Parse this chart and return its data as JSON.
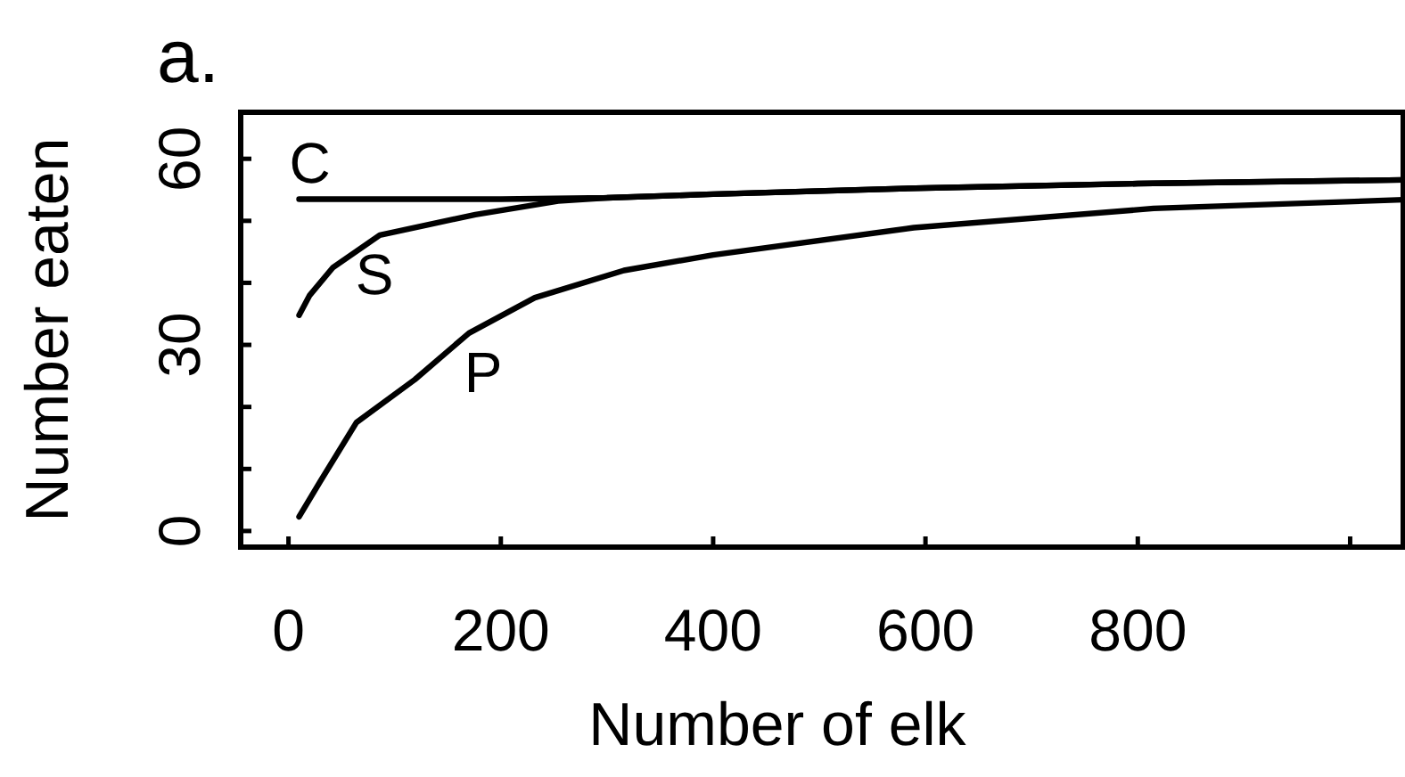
{
  "chart_data": {
    "type": "line",
    "title": "a.",
    "xlabel": "Number of elk",
    "ylabel": "Number eaten",
    "xlim": [
      -45,
      1050
    ],
    "xticks": [
      0,
      200,
      400,
      600,
      800,
      {
        "value": 1000,
        "label": null
      }
    ],
    "ylim": [
      -2.6,
      67.5
    ],
    "yticks": [
      0,
      {
        "value": 10,
        "label": null
      },
      {
        "value": 20,
        "label": null
      },
      30,
      {
        "value": 40,
        "label": null
      },
      {
        "value": 50,
        "label": null
      },
      60
    ],
    "grid": false,
    "marker": "none",
    "line_style": "solid",
    "series": [
      {
        "name": "C",
        "color": "#000000",
        "x": [
          10,
          100,
          200,
          300,
          400,
          600,
          800,
          1050
        ],
        "values": [
          53.5,
          53.5,
          53.5,
          53.7,
          54.3,
          55.3,
          56,
          56.6
        ]
      },
      {
        "name": "S",
        "color": "#000000",
        "x": [
          10,
          20,
          42,
          86,
          176,
          254,
          300,
          400,
          600,
          800,
          1050
        ],
        "values": [
          34.8,
          38,
          42.5,
          47.7,
          51,
          53.2,
          53.7,
          54.3,
          55.3,
          56,
          56.6
        ]
      },
      {
        "name": "P",
        "color": "#000000",
        "x": [
          10,
          30,
          64,
          119,
          170,
          232,
          316,
          400,
          589,
          815,
          1050
        ],
        "values": [
          2.3,
          8,
          17.5,
          24.4,
          31.9,
          37.6,
          42,
          44.5,
          48.9,
          52,
          53.4
        ]
      }
    ]
  }
}
